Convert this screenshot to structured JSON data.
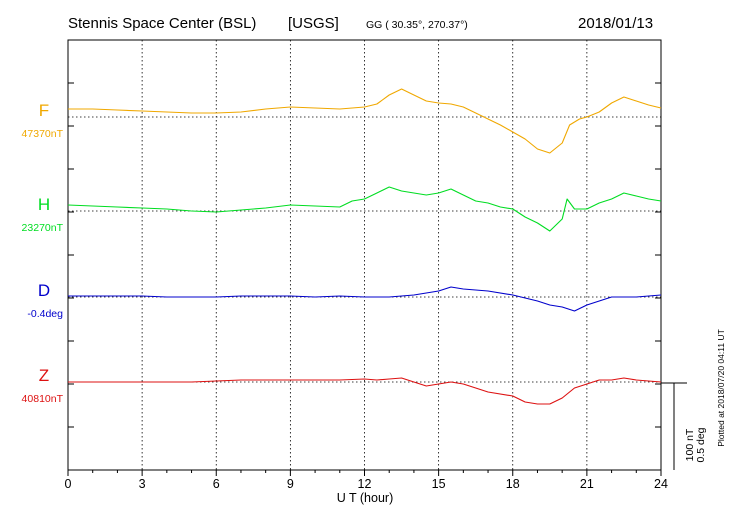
{
  "header": {
    "station": "Stennis Space Center (BSL)",
    "agency": "[USGS]",
    "coords": "GG ( 30.35°, 270.37°)",
    "date": "2018/01/13"
  },
  "chart_data": {
    "type": "line",
    "xlabel": "U T (hour)",
    "xlim": [
      0,
      24
    ],
    "xticks": [
      "0",
      "3",
      "6",
      "9",
      "12",
      "15",
      "18",
      "21",
      "24"
    ],
    "scale_label_nt": "100 nT",
    "scale_label_deg": "0.5 deg",
    "plotted_note": "Plotted at 2018/07/20 04:11 UT",
    "series": [
      {
        "name": "F",
        "baseline": "47370nT",
        "color": "#f0a800",
        "x": [
          0,
          1,
          2,
          3,
          4,
          5,
          6,
          7,
          8,
          9,
          10,
          11,
          12,
          12.5,
          13,
          13.5,
          14,
          14.5,
          15,
          15.5,
          16,
          16.5,
          17,
          17.5,
          18,
          18.5,
          19,
          19.5,
          20,
          20.3,
          20.7,
          21,
          21.5,
          22,
          22.5,
          23,
          23.5,
          24
        ],
        "y": [
          8,
          8,
          7,
          6,
          5,
          4,
          4,
          5,
          8,
          10,
          9,
          8,
          10,
          13,
          22,
          28,
          22,
          16,
          14,
          13,
          10,
          4,
          -2,
          -8,
          -15,
          -22,
          -32,
          -36,
          -26,
          -8,
          -2,
          0,
          5,
          14,
          20,
          16,
          12,
          9
        ]
      },
      {
        "name": "H",
        "baseline": "23270nT",
        "color": "#00dd22",
        "x": [
          0,
          1,
          2,
          3,
          4,
          5,
          6,
          7,
          8,
          9,
          10,
          11,
          11.5,
          12,
          12.5,
          13,
          13.5,
          14,
          14.5,
          15,
          15.5,
          16,
          16.5,
          17,
          17.5,
          18,
          18.5,
          19,
          19.5,
          20,
          20.2,
          20.5,
          21,
          21.5,
          22,
          22.5,
          23,
          23.5,
          24
        ],
        "y": [
          6,
          5,
          4,
          3,
          2,
          0,
          -1,
          1,
          3,
          6,
          5,
          4,
          10,
          12,
          18,
          24,
          20,
          18,
          16,
          18,
          22,
          16,
          10,
          8,
          4,
          2,
          -6,
          -12,
          -20,
          -8,
          12,
          2,
          2,
          8,
          12,
          18,
          15,
          12,
          10
        ]
      },
      {
        "name": "D",
        "baseline": "-0.4deg",
        "color": "#0000cc",
        "x": [
          0,
          1,
          2,
          3,
          4,
          5,
          6,
          7,
          8,
          9,
          10,
          11,
          12,
          13,
          14,
          15,
          15.5,
          16,
          17,
          18,
          19,
          19.5,
          20,
          20.5,
          21,
          22,
          23,
          24
        ],
        "y": [
          1,
          1,
          1,
          1,
          0,
          0,
          0,
          1,
          1,
          1,
          0,
          1,
          0,
          0,
          2,
          6,
          10,
          8,
          6,
          2,
          -4,
          -8,
          -10,
          -14,
          -8,
          0,
          0,
          2
        ]
      },
      {
        "name": "Z",
        "baseline": "40810nT",
        "color": "#dd1111",
        "x": [
          0,
          1,
          2,
          3,
          4,
          5,
          6,
          7,
          8,
          9,
          10,
          11,
          12,
          12.5,
          13,
          13.5,
          14,
          14.5,
          15,
          15.5,
          16,
          16.5,
          17,
          18,
          18.5,
          19,
          19.5,
          20,
          20.5,
          21,
          21.5,
          22,
          22.5,
          23,
          23.5,
          24
        ],
        "y": [
          0,
          0,
          0,
          0,
          0,
          0,
          1,
          2,
          2,
          2,
          2,
          2,
          3,
          2,
          3,
          4,
          0,
          -4,
          -2,
          0,
          -2,
          -6,
          -10,
          -14,
          -20,
          -22,
          -22,
          -16,
          -6,
          -2,
          2,
          2,
          4,
          2,
          1,
          0
        ]
      }
    ]
  }
}
